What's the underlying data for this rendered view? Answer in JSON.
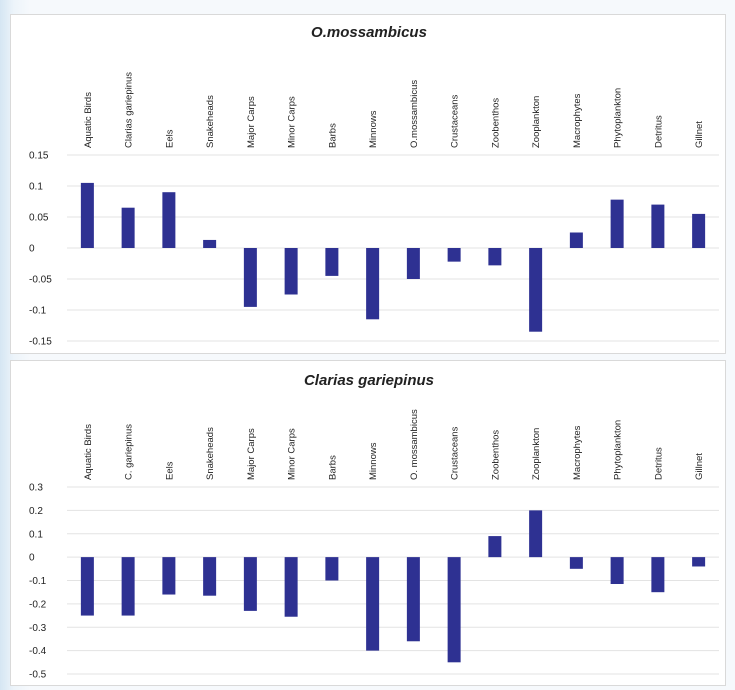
{
  "chart_data": [
    {
      "type": "bar",
      "title": "O.mossambicus",
      "categories": [
        "Aquatic Birds",
        "Clarias gariepinus",
        "Eels",
        "Snakeheads",
        "Major Carps",
        "Minor Carps",
        "Barbs",
        "Minnows",
        "O.mossambicus",
        "Crustaceans",
        "Zoobenthos",
        "Zooplankton",
        "Macrophytes",
        "Phytoplankton",
        "Detritus",
        "Gillnet"
      ],
      "values": [
        0.105,
        0.065,
        0.09,
        0.013,
        -0.095,
        -0.075,
        -0.045,
        -0.115,
        -0.05,
        -0.022,
        -0.028,
        -0.135,
        0.025,
        0.078,
        0.07,
        0.055
      ],
      "yticks": [
        "0.15",
        "0.1",
        "0.05",
        "0",
        "-0.05",
        "-0.1",
        "-0.15"
      ],
      "ylim": [
        -0.15,
        0.15
      ],
      "grid": true,
      "bar_color": "#2e3192"
    },
    {
      "type": "bar",
      "title": "Clarias gariepinus",
      "categories": [
        "Aquatic Birds",
        "C. gariepinus",
        "Eels",
        "Snakeheads",
        "Major Carps",
        "Minor Carps",
        "Barbs",
        "Minnows",
        "O. mossambicus",
        "Crustaceans",
        "Zoobenthos",
        "Zooplankton",
        "Macrophytes",
        "Phytoplankton",
        "Detritus",
        "Gillnet"
      ],
      "values": [
        -0.25,
        -0.25,
        -0.16,
        -0.165,
        -0.23,
        -0.255,
        -0.1,
        -0.4,
        -0.36,
        -0.45,
        0.09,
        0.2,
        -0.05,
        -0.115,
        -0.15,
        -0.04
      ],
      "yticks": [
        "0.3",
        "0.2",
        "0.1",
        "0",
        "-0.1",
        "-0.2",
        "-0.3",
        "-0.4",
        "-0.5"
      ],
      "ylim": [
        -0.5,
        0.3
      ],
      "grid": true,
      "bar_color": "#2e3192"
    }
  ]
}
